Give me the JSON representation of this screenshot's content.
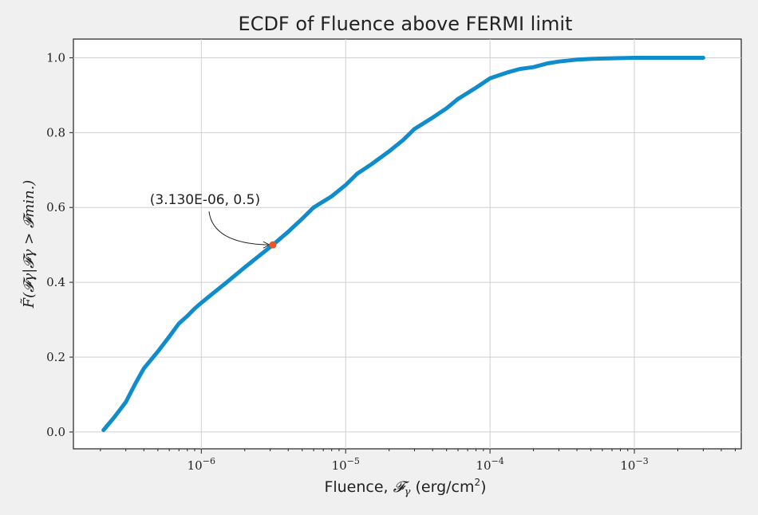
{
  "chart_data": {
    "type": "line",
    "title": "ECDF of Fluence above FERMI limit",
    "xlabel": "Fluence, ",
    "xlabel_math": "𝓕",
    "xlabel_math_sub": "γ",
    "xlabel_units": " (erg/cm",
    "xlabel_units_sup": "2",
    "xlabel_units_close": ")",
    "ylabel": "F̃(𝓕γ|𝓕γ > 𝓕min.)",
    "xscale": "log",
    "xlim": [
      1.3e-07,
      0.0055
    ],
    "ylim": [
      -0.045,
      1.05
    ],
    "grid": true,
    "xticks": [
      {
        "exp": "−6",
        "value": 1e-06
      },
      {
        "exp": "−5",
        "value": 1e-05
      },
      {
        "exp": "−4",
        "value": 0.0001
      },
      {
        "exp": "−3",
        "value": 0.001
      }
    ],
    "yticks": [
      "0.0",
      "0.2",
      "0.4",
      "0.6",
      "0.8",
      "1.0"
    ],
    "ytick_values": [
      0.0,
      0.2,
      0.4,
      0.6,
      0.8,
      1.0
    ],
    "series": [
      {
        "color": "#0f8ccc",
        "x": [
          2.1e-07,
          2.5e-07,
          3e-07,
          3.5e-07,
          4e-07,
          5e-07,
          6e-07,
          7e-07,
          8e-07,
          9e-07,
          1e-06,
          1.2e-06,
          1.5e-06,
          2e-06,
          2.5e-06,
          3.13e-06,
          4e-06,
          5e-06,
          6e-06,
          8e-06,
          1e-05,
          1.2e-05,
          1.5e-05,
          2e-05,
          2.5e-05,
          3e-05,
          4e-05,
          5e-05,
          6e-05,
          8e-05,
          0.0001,
          0.00013,
          0.00016,
          0.0002,
          0.00025,
          0.0003,
          0.0004,
          0.0005,
          0.0006,
          0.0008,
          0.001,
          0.002,
          0.003
        ],
        "y": [
          0.005,
          0.04,
          0.08,
          0.13,
          0.17,
          0.215,
          0.255,
          0.29,
          0.31,
          0.33,
          0.345,
          0.37,
          0.4,
          0.44,
          0.47,
          0.5,
          0.535,
          0.57,
          0.6,
          0.63,
          0.66,
          0.69,
          0.715,
          0.75,
          0.78,
          0.81,
          0.84,
          0.865,
          0.89,
          0.92,
          0.945,
          0.96,
          0.97,
          0.975,
          0.985,
          0.99,
          0.995,
          0.997,
          0.998,
          0.999,
          1.0,
          1.0,
          1.0
        ]
      }
    ],
    "annotation": {
      "text": "(3.130E-06, 0.5)",
      "x": 3.13e-06,
      "y": 0.5,
      "marker_color": "#e8562a"
    }
  }
}
